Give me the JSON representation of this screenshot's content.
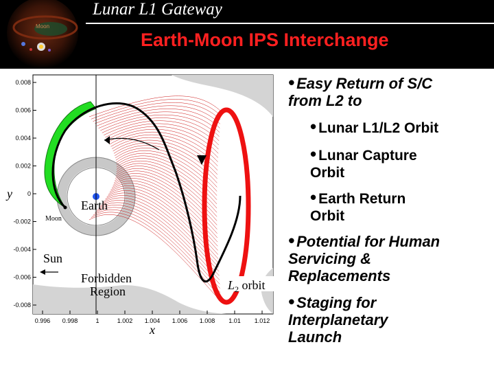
{
  "header": {
    "section_title": "Lunar L1 Gateway",
    "slide_title": "Earth-Moon IPS Interchange",
    "logo_label": "Moon"
  },
  "plot": {
    "y_axis_label": "y",
    "x_axis_label": "x",
    "x_ticks": [
      "0.996",
      "0.998",
      "1",
      "1.002",
      "1.004",
      "1.006",
      "1.008",
      "1.01",
      "1.012"
    ],
    "y_ticks": [
      "0.008",
      "0.006",
      "0.004",
      "0.002",
      "0",
      "-0.002",
      "-0.004",
      "-0.006",
      "-0.008"
    ],
    "labels": {
      "earth": "Earth",
      "moon": "Moon",
      "sun": "Sun",
      "forbidden_line1": "Forbidden",
      "forbidden_line2": "Region",
      "orbit_italic": "L",
      "orbit_sub": "2",
      "orbit_rest": " orbit"
    },
    "colors": {
      "manifold": "#cc1111",
      "orbit": "#ee1111",
      "trajectory": "#000000",
      "band": "#22dd22",
      "forbidden": "#d4d4d4"
    }
  },
  "bullets": [
    {
      "level": 1,
      "text": "Easy Return of S/C\nfrom L2 to"
    },
    {
      "level": 2,
      "text": "Lunar L1/L2 Orbit"
    },
    {
      "level": 2,
      "text": "Lunar Capture\nOrbit"
    },
    {
      "level": 2,
      "text": "Earth Return\nOrbit"
    },
    {
      "level": 1,
      "text": "Potential for Human\nServicing &\nReplacements"
    },
    {
      "level": 1,
      "text": "Staging for\nInterplanetary\nLaunch"
    }
  ]
}
